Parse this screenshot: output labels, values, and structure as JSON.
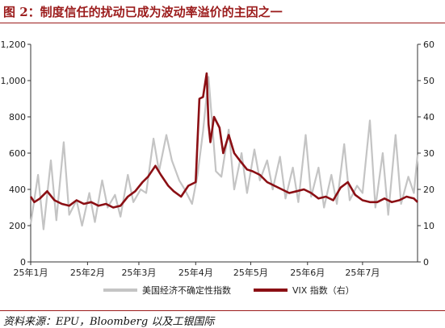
{
  "title": "图 2：制度信任的扰动已成为波动率溢价的主因之一",
  "source": "资料来源：EPU，Bloomberg 以及工银国际",
  "colors": {
    "title": "#9b1b1b",
    "epu": "#c4c4c4",
    "vix": "#8b0f14",
    "axis": "#333333"
  },
  "chart_data": {
    "type": "line",
    "x_start": "2025-01-01",
    "x_end": "2025-07-31",
    "x_ticks": [
      "25年1月",
      "25年2月",
      "25年3月",
      "25年4月",
      "25年5月",
      "25年6月",
      "25年7月"
    ],
    "y_left": {
      "lim": [
        0,
        1200
      ],
      "ticks": [
        "0",
        "200",
        "400",
        "600",
        "800",
        "1,000",
        "1,200"
      ]
    },
    "y_right": {
      "lim": [
        0,
        60
      ],
      "ticks": [
        "0",
        "10",
        "20",
        "30",
        "40",
        "50",
        "60"
      ]
    },
    "series": [
      {
        "name": "美国经济不确定性指数",
        "axis": "left",
        "color": "#c4c4c4",
        "x": [
          "2025-01-01",
          "2025-01-05",
          "2025-01-08",
          "2025-01-12",
          "2025-01-15",
          "2025-01-19",
          "2025-01-22",
          "2025-01-26",
          "2025-01-29",
          "2025-02-02",
          "2025-02-05",
          "2025-02-09",
          "2025-02-12",
          "2025-02-16",
          "2025-02-19",
          "2025-02-23",
          "2025-02-26",
          "2025-03-02",
          "2025-03-05",
          "2025-03-09",
          "2025-03-12",
          "2025-03-16",
          "2025-03-19",
          "2025-03-23",
          "2025-03-26",
          "2025-03-30",
          "2025-04-02",
          "2025-04-05",
          "2025-04-08",
          "2025-04-12",
          "2025-04-15",
          "2025-04-19",
          "2025-04-22",
          "2025-04-26",
          "2025-04-29",
          "2025-05-03",
          "2025-05-06",
          "2025-05-10",
          "2025-05-13",
          "2025-05-17",
          "2025-05-20",
          "2025-05-24",
          "2025-05-27",
          "2025-05-31",
          "2025-06-03",
          "2025-06-07",
          "2025-06-10",
          "2025-06-14",
          "2025-06-17",
          "2025-06-21",
          "2025-06-24",
          "2025-06-28",
          "2025-07-01",
          "2025-07-05",
          "2025-07-08",
          "2025-07-12",
          "2025-07-15",
          "2025-07-19",
          "2025-07-22",
          "2025-07-26",
          "2025-07-29",
          "2025-07-31"
        ],
        "values": [
          210,
          480,
          180,
          560,
          230,
          660,
          260,
          340,
          200,
          380,
          220,
          450,
          300,
          370,
          250,
          480,
          330,
          400,
          380,
          680,
          500,
          700,
          560,
          450,
          400,
          320,
          480,
          720,
          1020,
          500,
          470,
          730,
          400,
          600,
          380,
          620,
          450,
          560,
          400,
          580,
          350,
          520,
          330,
          700,
          360,
          520,
          300,
          480,
          320,
          650,
          340,
          420,
          380,
          780,
          300,
          600,
          260,
          700,
          320,
          470,
          380,
          590
        ]
      },
      {
        "name": "VIX 指数（右）",
        "axis": "right",
        "color": "#8b0f14",
        "x": [
          "2025-01-01",
          "2025-01-03",
          "2025-01-06",
          "2025-01-10",
          "2025-01-14",
          "2025-01-18",
          "2025-01-22",
          "2025-01-26",
          "2025-01-30",
          "2025-02-03",
          "2025-02-07",
          "2025-02-11",
          "2025-02-15",
          "2025-02-19",
          "2025-02-23",
          "2025-02-27",
          "2025-03-03",
          "2025-03-06",
          "2025-03-10",
          "2025-03-13",
          "2025-03-17",
          "2025-03-20",
          "2025-03-24",
          "2025-03-28",
          "2025-04-01",
          "2025-04-03",
          "2025-04-05",
          "2025-04-07",
          "2025-04-08",
          "2025-04-09",
          "2025-04-11",
          "2025-04-14",
          "2025-04-16",
          "2025-04-19",
          "2025-04-22",
          "2025-04-25",
          "2025-04-29",
          "2025-05-02",
          "2025-05-06",
          "2025-05-10",
          "2025-05-14",
          "2025-05-18",
          "2025-05-22",
          "2025-05-26",
          "2025-05-30",
          "2025-06-03",
          "2025-06-07",
          "2025-06-11",
          "2025-06-15",
          "2025-06-19",
          "2025-06-23",
          "2025-06-27",
          "2025-07-01",
          "2025-07-05",
          "2025-07-09",
          "2025-07-13",
          "2025-07-17",
          "2025-07-21",
          "2025-07-25",
          "2025-07-29",
          "2025-07-31"
        ],
        "values": [
          18,
          16.5,
          17.5,
          19.5,
          17,
          16,
          15.5,
          17,
          16,
          16.5,
          15.5,
          16,
          15,
          15.5,
          18,
          19.5,
          22,
          23.5,
          26.5,
          24,
          21,
          19.5,
          18,
          21,
          22,
          45,
          45.5,
          52,
          38,
          33,
          40,
          37,
          30,
          35,
          30,
          28,
          25.5,
          25,
          24,
          22,
          21,
          20,
          19,
          19.5,
          20,
          19,
          17.5,
          18,
          17,
          20.5,
          22,
          18.5,
          17,
          16.5,
          16.5,
          17.5,
          16.5,
          17,
          18,
          17.5,
          16.5
        ]
      }
    ],
    "grid": false,
    "legend_position": "bottom"
  }
}
